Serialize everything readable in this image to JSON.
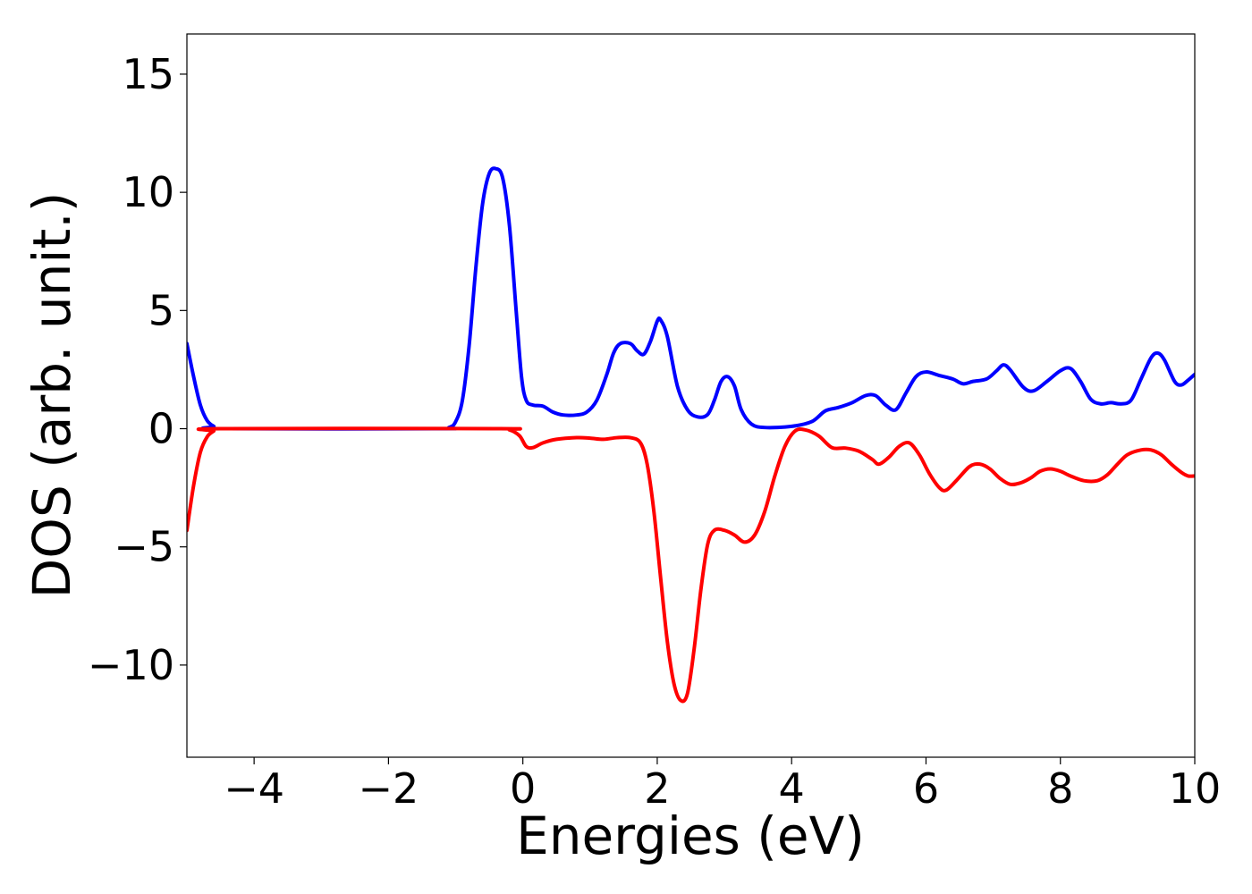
{
  "chart_data": {
    "type": "line",
    "title": "",
    "xlabel": "Energies (eV)",
    "ylabel": "DOS (arb. unit.)",
    "xlim": [
      -5,
      10
    ],
    "ylim": [
      -13.9,
      16.7
    ],
    "x_ticks": [
      -4,
      -2,
      0,
      2,
      4,
      6,
      8,
      10
    ],
    "y_ticks": [
      -10,
      -5,
      0,
      5,
      10,
      15
    ],
    "x_tick_labels": [
      "−4",
      "−2",
      "0",
      "2",
      "4",
      "6",
      "8",
      "10"
    ],
    "y_tick_labels": [
      "−10",
      "−5",
      "0",
      "5",
      "10",
      "15"
    ],
    "grid": false,
    "legend": "none",
    "series": [
      {
        "color": "#0000ff",
        "points": [
          [
            -5.0,
            3.6
          ],
          [
            -4.9,
            2.2
          ],
          [
            -4.8,
            1.0
          ],
          [
            -4.7,
            0.35
          ],
          [
            -4.6,
            0.1
          ],
          [
            -4.5,
            0.0
          ],
          [
            -1.3,
            0.0
          ],
          [
            -1.1,
            0.05
          ],
          [
            -1.0,
            0.3
          ],
          [
            -0.9,
            1.2
          ],
          [
            -0.8,
            3.5
          ],
          [
            -0.7,
            6.8
          ],
          [
            -0.6,
            9.5
          ],
          [
            -0.5,
            10.8
          ],
          [
            -0.4,
            11.0
          ],
          [
            -0.3,
            10.6
          ],
          [
            -0.2,
            8.6
          ],
          [
            -0.1,
            5.0
          ],
          [
            -0.02,
            2.2
          ],
          [
            0.05,
            1.2
          ],
          [
            0.15,
            1.0
          ],
          [
            0.3,
            0.95
          ],
          [
            0.45,
            0.7
          ],
          [
            0.6,
            0.58
          ],
          [
            0.8,
            0.58
          ],
          [
            0.95,
            0.7
          ],
          [
            1.1,
            1.2
          ],
          [
            1.25,
            2.3
          ],
          [
            1.35,
            3.2
          ],
          [
            1.45,
            3.6
          ],
          [
            1.6,
            3.6
          ],
          [
            1.7,
            3.3
          ],
          [
            1.8,
            3.15
          ],
          [
            1.9,
            3.7
          ],
          [
            2.0,
            4.55
          ],
          [
            2.05,
            4.6
          ],
          [
            2.15,
            3.9
          ],
          [
            2.3,
            1.8
          ],
          [
            2.45,
            0.8
          ],
          [
            2.6,
            0.5
          ],
          [
            2.75,
            0.6
          ],
          [
            2.85,
            1.2
          ],
          [
            2.95,
            2.0
          ],
          [
            3.05,
            2.2
          ],
          [
            3.15,
            1.8
          ],
          [
            3.25,
            0.8
          ],
          [
            3.4,
            0.2
          ],
          [
            3.6,
            0.05
          ],
          [
            4.0,
            0.1
          ],
          [
            4.3,
            0.3
          ],
          [
            4.5,
            0.75
          ],
          [
            4.7,
            0.9
          ],
          [
            4.9,
            1.1
          ],
          [
            5.1,
            1.4
          ],
          [
            5.25,
            1.4
          ],
          [
            5.4,
            1.0
          ],
          [
            5.55,
            0.8
          ],
          [
            5.7,
            1.5
          ],
          [
            5.85,
            2.2
          ],
          [
            6.0,
            2.4
          ],
          [
            6.2,
            2.25
          ],
          [
            6.4,
            2.1
          ],
          [
            6.55,
            1.9
          ],
          [
            6.7,
            2.0
          ],
          [
            6.9,
            2.1
          ],
          [
            7.05,
            2.45
          ],
          [
            7.15,
            2.7
          ],
          [
            7.25,
            2.5
          ],
          [
            7.45,
            1.75
          ],
          [
            7.6,
            1.6
          ],
          [
            7.8,
            2.0
          ],
          [
            8.0,
            2.45
          ],
          [
            8.15,
            2.55
          ],
          [
            8.3,
            2.0
          ],
          [
            8.45,
            1.25
          ],
          [
            8.6,
            1.05
          ],
          [
            8.75,
            1.1
          ],
          [
            8.9,
            1.05
          ],
          [
            9.05,
            1.2
          ],
          [
            9.2,
            2.1
          ],
          [
            9.35,
            3.0
          ],
          [
            9.45,
            3.2
          ],
          [
            9.55,
            2.9
          ],
          [
            9.7,
            2.0
          ],
          [
            9.8,
            1.85
          ],
          [
            9.9,
            2.05
          ],
          [
            10.0,
            2.3
          ]
        ]
      },
      {
        "color": "#ff0000",
        "points": [
          [
            -5.0,
            -4.3
          ],
          [
            -4.9,
            -2.4
          ],
          [
            -4.8,
            -1.0
          ],
          [
            -4.7,
            -0.35
          ],
          [
            -4.6,
            -0.1
          ],
          [
            -4.5,
            0.0
          ],
          [
            -0.4,
            0.0
          ],
          [
            -0.2,
            -0.05
          ],
          [
            -0.05,
            -0.3
          ],
          [
            0.05,
            -0.75
          ],
          [
            0.15,
            -0.8
          ],
          [
            0.3,
            -0.6
          ],
          [
            0.5,
            -0.45
          ],
          [
            0.8,
            -0.38
          ],
          [
            1.0,
            -0.4
          ],
          [
            1.2,
            -0.45
          ],
          [
            1.4,
            -0.38
          ],
          [
            1.6,
            -0.38
          ],
          [
            1.75,
            -0.6
          ],
          [
            1.85,
            -1.5
          ],
          [
            1.95,
            -3.5
          ],
          [
            2.05,
            -6.3
          ],
          [
            2.15,
            -9.0
          ],
          [
            2.25,
            -10.8
          ],
          [
            2.35,
            -11.5
          ],
          [
            2.45,
            -11.2
          ],
          [
            2.55,
            -9.3
          ],
          [
            2.65,
            -6.8
          ],
          [
            2.75,
            -4.9
          ],
          [
            2.85,
            -4.3
          ],
          [
            3.0,
            -4.3
          ],
          [
            3.15,
            -4.5
          ],
          [
            3.3,
            -4.8
          ],
          [
            3.45,
            -4.5
          ],
          [
            3.6,
            -3.5
          ],
          [
            3.75,
            -2.0
          ],
          [
            3.9,
            -0.75
          ],
          [
            4.05,
            -0.1
          ],
          [
            4.2,
            -0.05
          ],
          [
            4.4,
            -0.3
          ],
          [
            4.6,
            -0.8
          ],
          [
            4.8,
            -0.82
          ],
          [
            5.0,
            -0.95
          ],
          [
            5.2,
            -1.3
          ],
          [
            5.3,
            -1.5
          ],
          [
            5.45,
            -1.2
          ],
          [
            5.6,
            -0.75
          ],
          [
            5.75,
            -0.6
          ],
          [
            5.9,
            -1.1
          ],
          [
            6.05,
            -1.9
          ],
          [
            6.2,
            -2.5
          ],
          [
            6.3,
            -2.6
          ],
          [
            6.45,
            -2.2
          ],
          [
            6.65,
            -1.6
          ],
          [
            6.8,
            -1.5
          ],
          [
            6.95,
            -1.7
          ],
          [
            7.1,
            -2.1
          ],
          [
            7.25,
            -2.35
          ],
          [
            7.4,
            -2.3
          ],
          [
            7.55,
            -2.1
          ],
          [
            7.7,
            -1.8
          ],
          [
            7.85,
            -1.7
          ],
          [
            8.0,
            -1.8
          ],
          [
            8.15,
            -2.0
          ],
          [
            8.35,
            -2.2
          ],
          [
            8.55,
            -2.2
          ],
          [
            8.7,
            -1.95
          ],
          [
            8.85,
            -1.5
          ],
          [
            9.0,
            -1.1
          ],
          [
            9.2,
            -0.9
          ],
          [
            9.35,
            -0.9
          ],
          [
            9.5,
            -1.1
          ],
          [
            9.65,
            -1.5
          ],
          [
            9.8,
            -1.85
          ],
          [
            9.9,
            -2.0
          ],
          [
            10.0,
            -2.0
          ]
        ]
      }
    ]
  }
}
